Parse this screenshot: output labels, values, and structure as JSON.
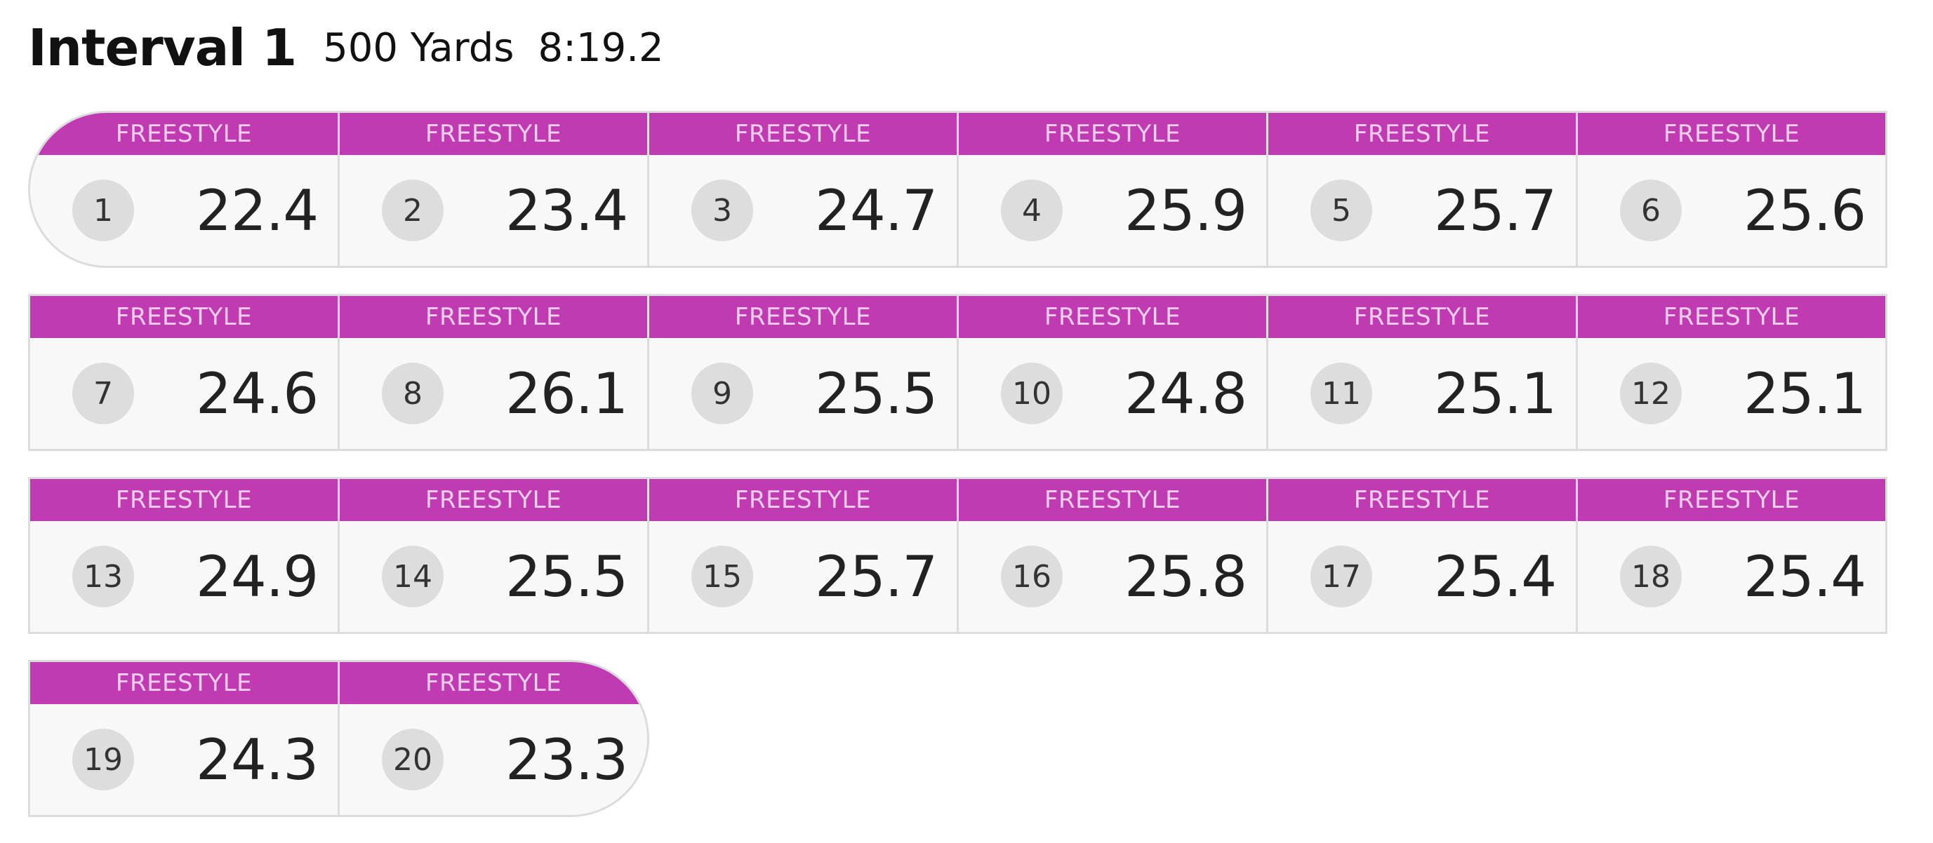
{
  "header": {
    "title": "Interval 1",
    "distance": "500 Yards",
    "time": "8:19.2"
  },
  "colors": {
    "stroke_bar": "#c03ab2",
    "stroke_text": "#f3cfee",
    "badge": "#dddddd",
    "cell_bg": "#f8f8f8",
    "border": "#dcdcdc"
  },
  "laps": [
    {
      "number": "1",
      "stroke": "FREESTYLE",
      "time": "22.4"
    },
    {
      "number": "2",
      "stroke": "FREESTYLE",
      "time": "23.4"
    },
    {
      "number": "3",
      "stroke": "FREESTYLE",
      "time": "24.7"
    },
    {
      "number": "4",
      "stroke": "FREESTYLE",
      "time": "25.9"
    },
    {
      "number": "5",
      "stroke": "FREESTYLE",
      "time": "25.7"
    },
    {
      "number": "6",
      "stroke": "FREESTYLE",
      "time": "25.6"
    },
    {
      "number": "7",
      "stroke": "FREESTYLE",
      "time": "24.6"
    },
    {
      "number": "8",
      "stroke": "FREESTYLE",
      "time": "26.1"
    },
    {
      "number": "9",
      "stroke": "FREESTYLE",
      "time": "25.5"
    },
    {
      "number": "10",
      "stroke": "FREESTYLE",
      "time": "24.8"
    },
    {
      "number": "11",
      "stroke": "FREESTYLE",
      "time": "25.1"
    },
    {
      "number": "12",
      "stroke": "FREESTYLE",
      "time": "25.1"
    },
    {
      "number": "13",
      "stroke": "FREESTYLE",
      "time": "24.9"
    },
    {
      "number": "14",
      "stroke": "FREESTYLE",
      "time": "25.5"
    },
    {
      "number": "15",
      "stroke": "FREESTYLE",
      "time": "25.7"
    },
    {
      "number": "16",
      "stroke": "FREESTYLE",
      "time": "25.8"
    },
    {
      "number": "17",
      "stroke": "FREESTYLE",
      "time": "25.4"
    },
    {
      "number": "18",
      "stroke": "FREESTYLE",
      "time": "25.4"
    },
    {
      "number": "19",
      "stroke": "FREESTYLE",
      "time": "24.3"
    },
    {
      "number": "20",
      "stroke": "FREESTYLE",
      "time": "23.3"
    }
  ]
}
